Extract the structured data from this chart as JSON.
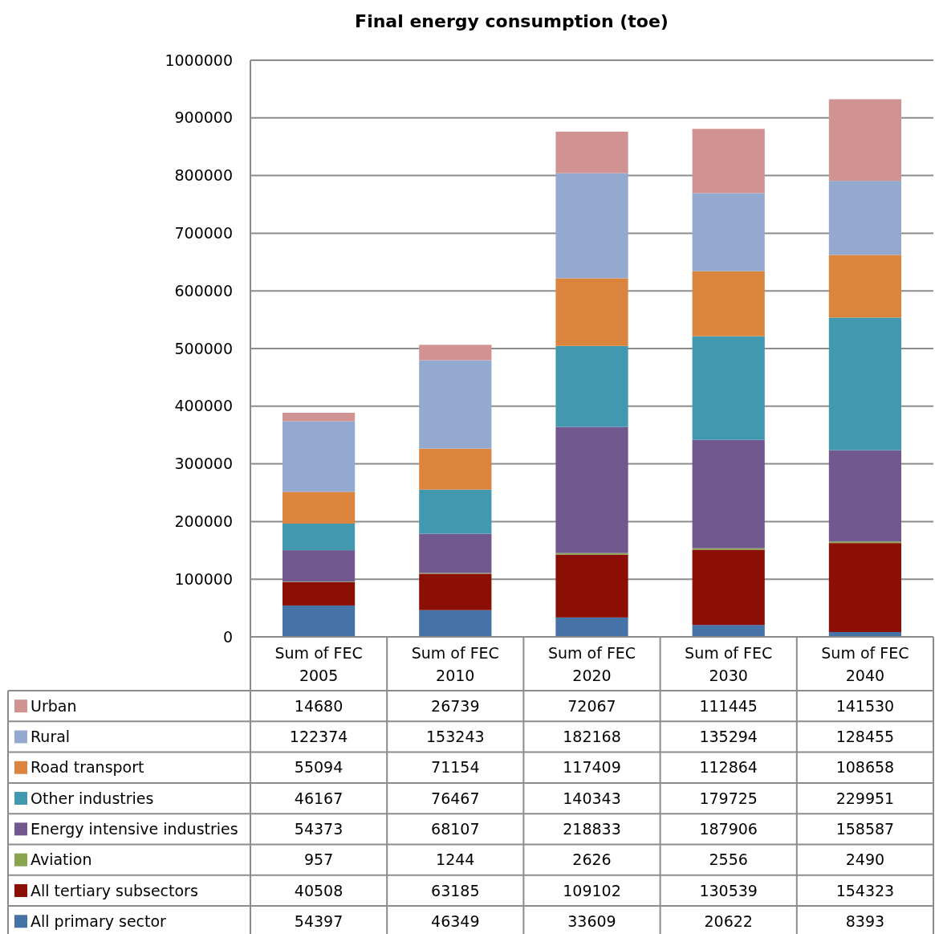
{
  "chart_data": {
    "type": "bar",
    "title": "Final energy consumption (toe)",
    "stacked": true,
    "categories": [
      "Sum of FEC 2005",
      "Sum of FEC 2010",
      "Sum of FEC 2020",
      "Sum of FEC 2030",
      "Sum of FEC 2040"
    ],
    "series": [
      {
        "name": "All primary sector",
        "color": "#4572a7",
        "values": [
          54397,
          46349,
          33609,
          20622,
          8393
        ]
      },
      {
        "name": "All tertiary subsectors",
        "color": "#8b0f05",
        "values": [
          40508,
          63185,
          109102,
          130539,
          154323
        ]
      },
      {
        "name": "Aviation",
        "color": "#89a54e",
        "values": [
          957,
          1244,
          2626,
          2556,
          2490
        ]
      },
      {
        "name": "Energy intensive industries",
        "color": "#71588f",
        "values": [
          54373,
          68107,
          218833,
          187906,
          158587
        ]
      },
      {
        "name": "Other industries",
        "color": "#4198af",
        "values": [
          46167,
          76467,
          140343,
          179725,
          229951
        ]
      },
      {
        "name": "Road transport",
        "color": "#db843d",
        "values": [
          55094,
          71154,
          117409,
          112864,
          108658
        ]
      },
      {
        "name": "Rural",
        "color": "#93a9cf",
        "values": [
          122374,
          153243,
          182168,
          135294,
          128455
        ]
      },
      {
        "name": "Urban",
        "color": "#d19392",
        "values": [
          14680,
          26739,
          72067,
          111445,
          141530
        ]
      }
    ],
    "ylim": [
      0,
      1000000
    ],
    "yticks": [
      0,
      100000,
      200000,
      300000,
      400000,
      500000,
      600000,
      700000,
      800000,
      900000,
      1000000
    ],
    "grid": "y",
    "legend": "bottom",
    "data_labels": true
  }
}
